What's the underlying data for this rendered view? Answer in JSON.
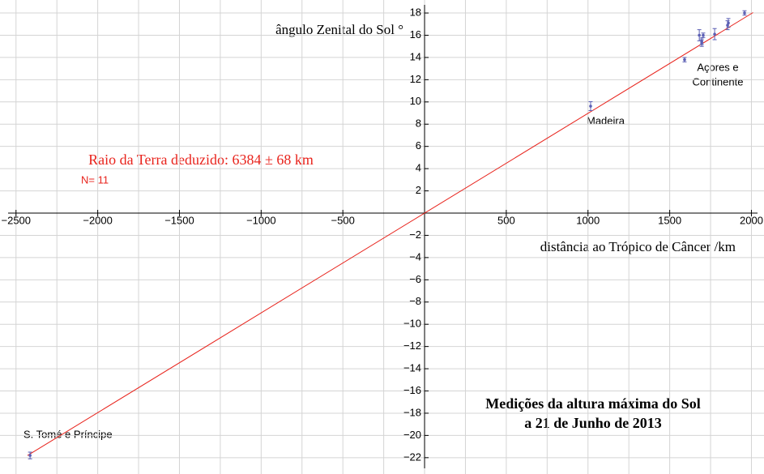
{
  "chart_data": {
    "type": "scatter",
    "title": [
      "Medições da altura máxima do Sol",
      "a 21 de Junho de 2013"
    ],
    "x_label": "distância ao Trópico de Câncer /km",
    "y_label": "ângulo Zenital do Sol °",
    "annotations": {
      "radius": "Raio da Terra deduzido: 6384 ± 68 km",
      "n": "N= 11",
      "madeira": "Madeira",
      "azores": [
        "Açores e",
        "Continente"
      ],
      "stome": "S. Tomé e Príncipe"
    },
    "series": [
      {
        "x": [
          -2414,
          1016,
          1591,
          1681,
          1696,
          1696,
          1705,
          1775,
          1854,
          1859,
          1958
        ],
        "values": [
          -21.8,
          9.62,
          13.8,
          16.0,
          15.45,
          15.3,
          16.0,
          16.1,
          16.9,
          17.1,
          18.0
        ],
        "errors": [
          0.3,
          0.4,
          0.2,
          0.5,
          0.3,
          0.3,
          0.2,
          0.5,
          0.4,
          0.4,
          0.2
        ],
        "color": "#5b5fb4"
      }
    ],
    "fit": {
      "x": [
        -2430,
        2010
      ],
      "values": [
        -21.81,
        18.04
      ],
      "color": "#e8231c"
    },
    "xlim": [
      -2598,
      2077
    ],
    "ylim": [
      -23.47,
      19.17
    ],
    "xticks": [
      {
        "value": -2500,
        "label": "−2500"
      },
      {
        "value": -2000,
        "label": "−2000"
      },
      {
        "value": -1500,
        "label": "−1500"
      },
      {
        "value": -1000,
        "label": "−1000"
      },
      {
        "value": -500,
        "label": "−500"
      },
      500,
      1000,
      1500,
      2000
    ],
    "yticks": [
      {
        "value": -22,
        "label": "−22"
      },
      {
        "value": -20,
        "label": "−20"
      },
      {
        "value": -18,
        "label": "−18"
      },
      {
        "value": -16,
        "label": "−16"
      },
      {
        "value": -14,
        "label": "−14"
      },
      {
        "value": -12,
        "label": "−12"
      },
      {
        "value": -10,
        "label": "−10"
      },
      {
        "value": -8,
        "label": "−8"
      },
      {
        "value": -6,
        "label": "−6"
      },
      {
        "value": -4,
        "label": "−4"
      },
      {
        "value": -2,
        "label": "−2"
      },
      2,
      4,
      6,
      8,
      10,
      12,
      14,
      16,
      18
    ],
    "xgrid": [
      -2500,
      -2250,
      -2000,
      -1750,
      -1500,
      -1250,
      -1000,
      -750,
      -500,
      -250,
      0,
      250,
      500,
      750,
      1000,
      1250,
      1500,
      1750,
      2000
    ],
    "grid": true
  }
}
